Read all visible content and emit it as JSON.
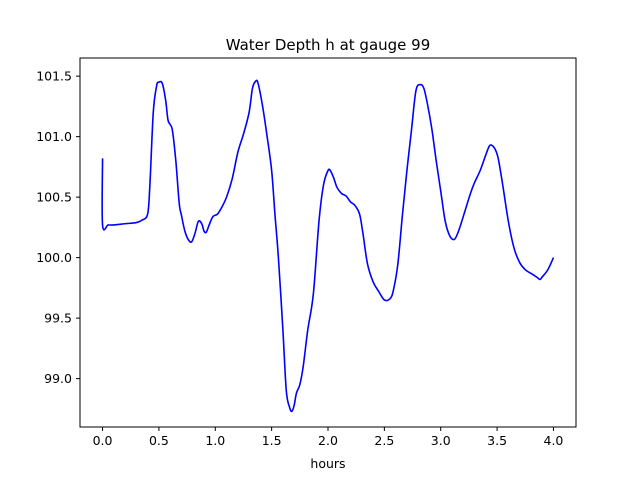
{
  "chart_data": {
    "type": "line",
    "title": "Water Depth h at gauge 99",
    "xlabel": "hours",
    "ylabel": "",
    "xlim": [
      -0.2,
      4.2
    ],
    "ylim": [
      98.6,
      101.65
    ],
    "grid": false,
    "line_color": "#0000ff",
    "xticks": [
      0.0,
      0.5,
      1.0,
      1.5,
      2.0,
      2.5,
      3.0,
      3.5,
      4.0
    ],
    "xtick_labels": [
      "0.0",
      "0.5",
      "1.0",
      "1.5",
      "2.0",
      "2.5",
      "3.0",
      "3.5",
      "4.0"
    ],
    "yticks": [
      99.0,
      99.5,
      100.0,
      100.5,
      101.0,
      101.5
    ],
    "ytick_labels": [
      "99.0",
      "99.5",
      "100.0",
      "100.5",
      "101.0",
      "101.5"
    ],
    "series": [
      {
        "x": [
          0.0,
          0.0,
          0.05,
          0.1,
          0.2,
          0.3,
          0.35,
          0.4,
          0.42,
          0.45,
          0.48,
          0.5,
          0.53,
          0.56,
          0.58,
          0.6,
          0.62,
          0.65,
          0.68,
          0.7,
          0.73,
          0.76,
          0.79,
          0.82,
          0.85,
          0.88,
          0.9,
          0.92,
          0.95,
          0.98,
          1.02,
          1.06,
          1.1,
          1.15,
          1.2,
          1.25,
          1.3,
          1.33,
          1.36,
          1.38,
          1.42,
          1.46,
          1.5,
          1.53,
          1.56,
          1.6,
          1.63,
          1.66,
          1.68,
          1.7,
          1.72,
          1.75,
          1.78,
          1.82,
          1.87,
          1.92,
          1.96,
          2.0,
          2.02,
          2.05,
          2.08,
          2.12,
          2.16,
          2.2,
          2.24,
          2.28,
          2.31,
          2.35,
          2.4,
          2.45,
          2.5,
          2.55,
          2.58,
          2.62,
          2.66,
          2.7,
          2.74,
          2.78,
          2.82,
          2.85,
          2.88,
          2.92,
          2.96,
          3.0,
          3.04,
          3.08,
          3.12,
          3.15,
          3.18,
          3.22,
          3.26,
          3.3,
          3.35,
          3.4,
          3.43,
          3.45,
          3.48,
          3.51,
          3.55,
          3.6,
          3.65,
          3.7,
          3.75,
          3.8,
          3.85,
          3.88,
          3.9,
          3.95,
          4.0
        ],
        "y": [
          100.82,
          100.27,
          100.27,
          100.27,
          100.28,
          100.29,
          100.31,
          100.36,
          100.6,
          101.2,
          101.42,
          101.45,
          101.44,
          101.3,
          101.14,
          101.1,
          101.05,
          100.8,
          100.45,
          100.35,
          100.22,
          100.15,
          100.13,
          100.2,
          100.3,
          100.28,
          100.22,
          100.21,
          100.28,
          100.34,
          100.36,
          100.42,
          100.5,
          100.65,
          100.87,
          101.02,
          101.2,
          101.4,
          101.46,
          101.44,
          101.25,
          101.0,
          100.72,
          100.35,
          100.0,
          99.4,
          98.9,
          98.76,
          98.73,
          98.78,
          98.88,
          98.95,
          99.1,
          99.4,
          99.7,
          100.3,
          100.6,
          100.72,
          100.72,
          100.66,
          100.58,
          100.53,
          100.51,
          100.46,
          100.43,
          100.36,
          100.2,
          99.95,
          99.8,
          99.72,
          99.65,
          99.66,
          99.73,
          99.95,
          100.35,
          100.72,
          101.05,
          101.38,
          101.43,
          101.4,
          101.28,
          101.07,
          100.8,
          100.55,
          100.3,
          100.18,
          100.15,
          100.2,
          100.28,
          100.4,
          100.52,
          100.62,
          100.72,
          100.85,
          100.92,
          100.93,
          100.9,
          100.82,
          100.6,
          100.3,
          100.08,
          99.96,
          99.9,
          99.87,
          99.84,
          99.82,
          99.84,
          99.9,
          100.0
        ]
      }
    ]
  }
}
